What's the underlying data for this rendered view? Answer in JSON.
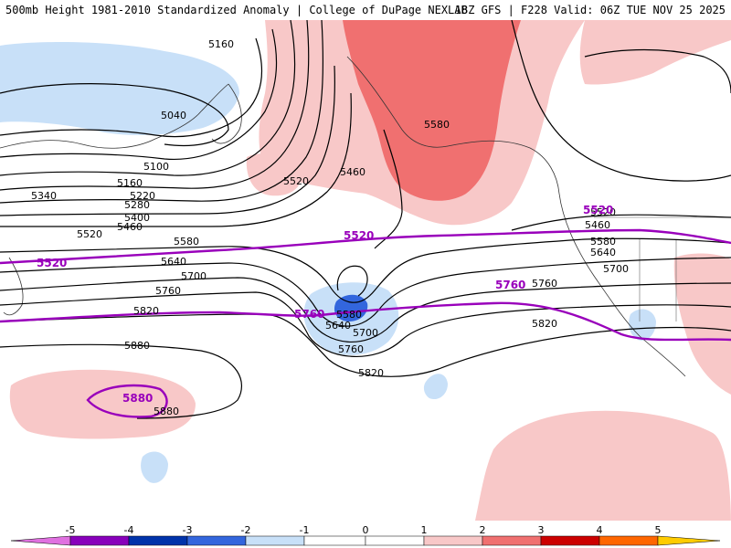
{
  "header": {
    "title_left": "500mb Height 1981-2010 Standardized Anomaly | College of DuPage NEXLAB",
    "title_right": "18Z GFS | F228 Valid: 06Z TUE NOV 25 2025"
  },
  "colors": {
    "neg5": "#e070e0",
    "neg4": "#8800bb",
    "neg3": "#0033aa",
    "neg2": "#3366dd",
    "neg1": "#c8e0f8",
    "pos1": "#f8c8c8",
    "pos2": "#f07070",
    "pos3": "#cc0000",
    "pos4": "#ff6600",
    "pos5": "#ffcc00",
    "contour": "#000000",
    "highlight": "#9900bb"
  },
  "contour_labels": [
    "5160",
    "5040",
    "5100",
    "5160",
    "5220",
    "5280",
    "5340",
    "5400",
    "5460",
    "5520",
    "5580",
    "5460",
    "5520",
    "5580",
    "5640",
    "5700",
    "5760",
    "5820",
    "5880",
    "5880",
    "5580",
    "5640",
    "5700",
    "5760",
    "5820",
    "5520",
    "5460",
    "5580",
    "5640",
    "5700",
    "5760",
    "5820"
  ],
  "highlight_labels": [
    "5520",
    "5520",
    "5760",
    "5760",
    "5520",
    "5880"
  ],
  "legend": {
    "ticks": [
      "-5",
      "-4",
      "-3",
      "-2",
      "-1",
      "0",
      "1",
      "2",
      "3",
      "4",
      "5"
    ]
  }
}
